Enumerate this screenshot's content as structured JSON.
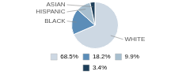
{
  "chart_data": {
    "type": "pie",
    "categories": [
      "WHITE",
      "BLACK",
      "HISPANIC",
      "ASIAN"
    ],
    "values": [
      68.5,
      18.2,
      9.9,
      3.4
    ],
    "value_labels": [
      "68.5%",
      "18.2%",
      "9.9%",
      "3.4%"
    ],
    "colors": [
      "#cdd8e3",
      "#5b8db8",
      "#a8bfcf",
      "#1e3f5a"
    ],
    "legend": "bottom"
  }
}
